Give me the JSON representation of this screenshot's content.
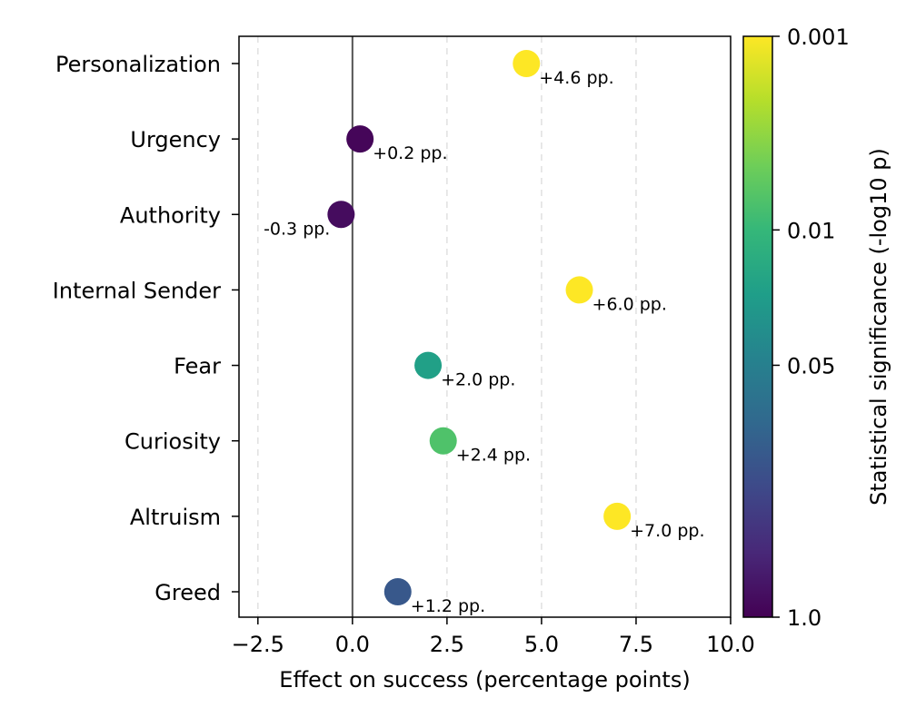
{
  "chart_data": {
    "type": "scatter",
    "orientation": "horizontal",
    "categories": [
      "Personalization",
      "Urgency",
      "Authority",
      "Internal Sender",
      "Fear",
      "Curiosity",
      "Altruism",
      "Greed"
    ],
    "values": [
      4.6,
      0.2,
      -0.3,
      6.0,
      2.0,
      2.4,
      7.0,
      1.2
    ],
    "data_labels": [
      "+4.6 pp.",
      "+0.2 pp.",
      "-0.3 pp.",
      "+6.0 pp.",
      "+2.0 pp.",
      "+2.4 pp.",
      "+7.0 pp.",
      "+1.2 pp."
    ],
    "p_values": [
      0.001,
      0.9,
      0.8,
      0.001,
      0.02,
      0.007,
      0.001,
      0.15
    ],
    "xlabel": "Effect on success (percentage points)",
    "xlim": [
      -3.0,
      10.0
    ],
    "xticks": [
      -2.5,
      0.0,
      2.5,
      5.0,
      7.5,
      10.0
    ],
    "xtick_labels": [
      "−2.5",
      "0.0",
      "2.5",
      "5.0",
      "7.5",
      "10.0"
    ],
    "reference_line_x": 0.0,
    "grid": "vertical dashed",
    "colorbar": {
      "label": "Statistical significance (-log10 p)",
      "colormap": "viridis",
      "scale": "log",
      "range": [
        1.0,
        0.001
      ],
      "ticks": [
        0.001,
        0.01,
        0.05,
        1.0
      ],
      "tick_labels": [
        "0.001",
        "0.01",
        "0.05",
        "1.0"
      ]
    }
  },
  "colors": {
    "viridis": [
      "#440154",
      "#482878",
      "#3e4989",
      "#31688e",
      "#26828e",
      "#1f9e89",
      "#35b779",
      "#6ece58",
      "#b5de2b",
      "#fde725"
    ],
    "reference_line": "#555555",
    "grid": "#e0e0e0"
  }
}
